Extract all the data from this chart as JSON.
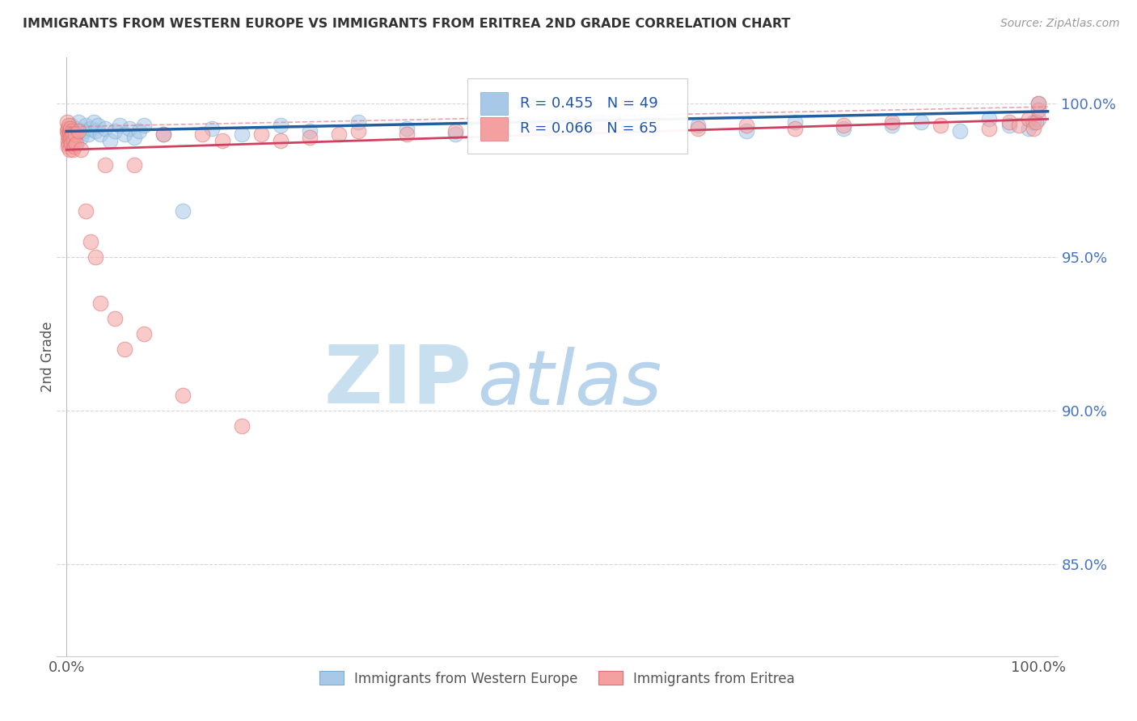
{
  "title": "IMMIGRANTS FROM WESTERN EUROPE VS IMMIGRANTS FROM ERITREA 2ND GRADE CORRELATION CHART",
  "source": "Source: ZipAtlas.com",
  "ylabel": "2nd Grade",
  "legend_blue_R": "R = 0.455",
  "legend_blue_N": "N = 49",
  "legend_pink_R": "R = 0.066",
  "legend_pink_N": "N = 65",
  "legend_blue_label": "Immigrants from Western Europe",
  "legend_pink_label": "Immigrants from Eritrea",
  "right_ytick_vals": [
    85.0,
    90.0,
    95.0,
    100.0
  ],
  "right_ytick_labels": [
    "85.0%",
    "90.0%",
    "95.0%",
    "100.0%"
  ],
  "blue_color": "#a8c8e8",
  "blue_edge_color": "#7aafd4",
  "pink_color": "#f4a0a0",
  "pink_edge_color": "#e07070",
  "blue_line_color": "#2060a0",
  "pink_line_color": "#d04060",
  "pink_dash_color": "#e08090",
  "watermark_zip_color": "#c8dff0",
  "watermark_atlas_color": "#b8d4ec",
  "ylim_min": 82.0,
  "ylim_max": 101.5,
  "xlim_min": -1.0,
  "xlim_max": 102.0,
  "blue_scatter_x": [
    0.3,
    0.5,
    0.8,
    1.0,
    1.2,
    1.5,
    1.8,
    2.0,
    2.2,
    2.5,
    2.8,
    3.0,
    3.2,
    3.5,
    4.0,
    4.5,
    5.0,
    5.5,
    6.0,
    6.5,
    7.0,
    7.5,
    8.0,
    10.0,
    12.0,
    15.0,
    18.0,
    22.0,
    25.0,
    30.0,
    35.0,
    40.0,
    45.0,
    50.0,
    55.0,
    60.0,
    65.0,
    70.0,
    75.0,
    80.0,
    85.0,
    88.0,
    92.0,
    95.0,
    97.0,
    99.0,
    99.5,
    100.0,
    100.0
  ],
  "blue_scatter_y": [
    99.1,
    99.3,
    99.0,
    99.2,
    99.4,
    98.9,
    99.1,
    99.3,
    99.0,
    99.2,
    99.4,
    99.1,
    99.3,
    99.0,
    99.2,
    98.8,
    99.1,
    99.3,
    99.0,
    99.2,
    98.9,
    99.1,
    99.3,
    99.0,
    96.5,
    99.2,
    99.0,
    99.3,
    99.1,
    99.4,
    99.2,
    99.0,
    99.3,
    99.1,
    99.4,
    99.2,
    99.3,
    99.1,
    99.4,
    99.2,
    99.3,
    99.4,
    99.1,
    99.5,
    99.3,
    99.2,
    99.4,
    100.0,
    99.5
  ],
  "pink_scatter_x": [
    0.05,
    0.08,
    0.1,
    0.12,
    0.15,
    0.18,
    0.2,
    0.22,
    0.25,
    0.28,
    0.3,
    0.32,
    0.35,
    0.38,
    0.4,
    0.45,
    0.5,
    0.55,
    0.6,
    0.65,
    0.7,
    0.8,
    0.9,
    1.0,
    1.2,
    1.5,
    2.0,
    2.5,
    3.0,
    3.5,
    4.0,
    5.0,
    6.0,
    7.0,
    8.0,
    10.0,
    12.0,
    14.0,
    16.0,
    18.0,
    20.0,
    22.0,
    25.0,
    28.0,
    30.0,
    35.0,
    40.0,
    45.0,
    50.0,
    55.0,
    60.0,
    65.0,
    70.0,
    75.0,
    80.0,
    85.0,
    90.0,
    95.0,
    97.0,
    98.0,
    99.0,
    99.5,
    99.8,
    100.0,
    100.0
  ],
  "pink_scatter_y": [
    99.4,
    99.1,
    98.8,
    99.2,
    98.6,
    99.0,
    98.9,
    99.3,
    98.7,
    99.1,
    99.0,
    98.5,
    98.8,
    99.2,
    98.9,
    99.0,
    98.7,
    99.1,
    98.5,
    99.0,
    98.8,
    98.6,
    99.0,
    98.7,
    99.1,
    98.5,
    96.5,
    95.5,
    95.0,
    93.5,
    98.0,
    93.0,
    92.0,
    98.0,
    92.5,
    99.0,
    90.5,
    99.0,
    98.8,
    89.5,
    99.0,
    98.8,
    98.9,
    99.0,
    99.1,
    99.0,
    99.1,
    99.2,
    99.1,
    99.3,
    99.1,
    99.2,
    99.3,
    99.2,
    99.3,
    99.4,
    99.3,
    99.2,
    99.4,
    99.3,
    99.5,
    99.2,
    99.4,
    99.8,
    100.0
  ]
}
